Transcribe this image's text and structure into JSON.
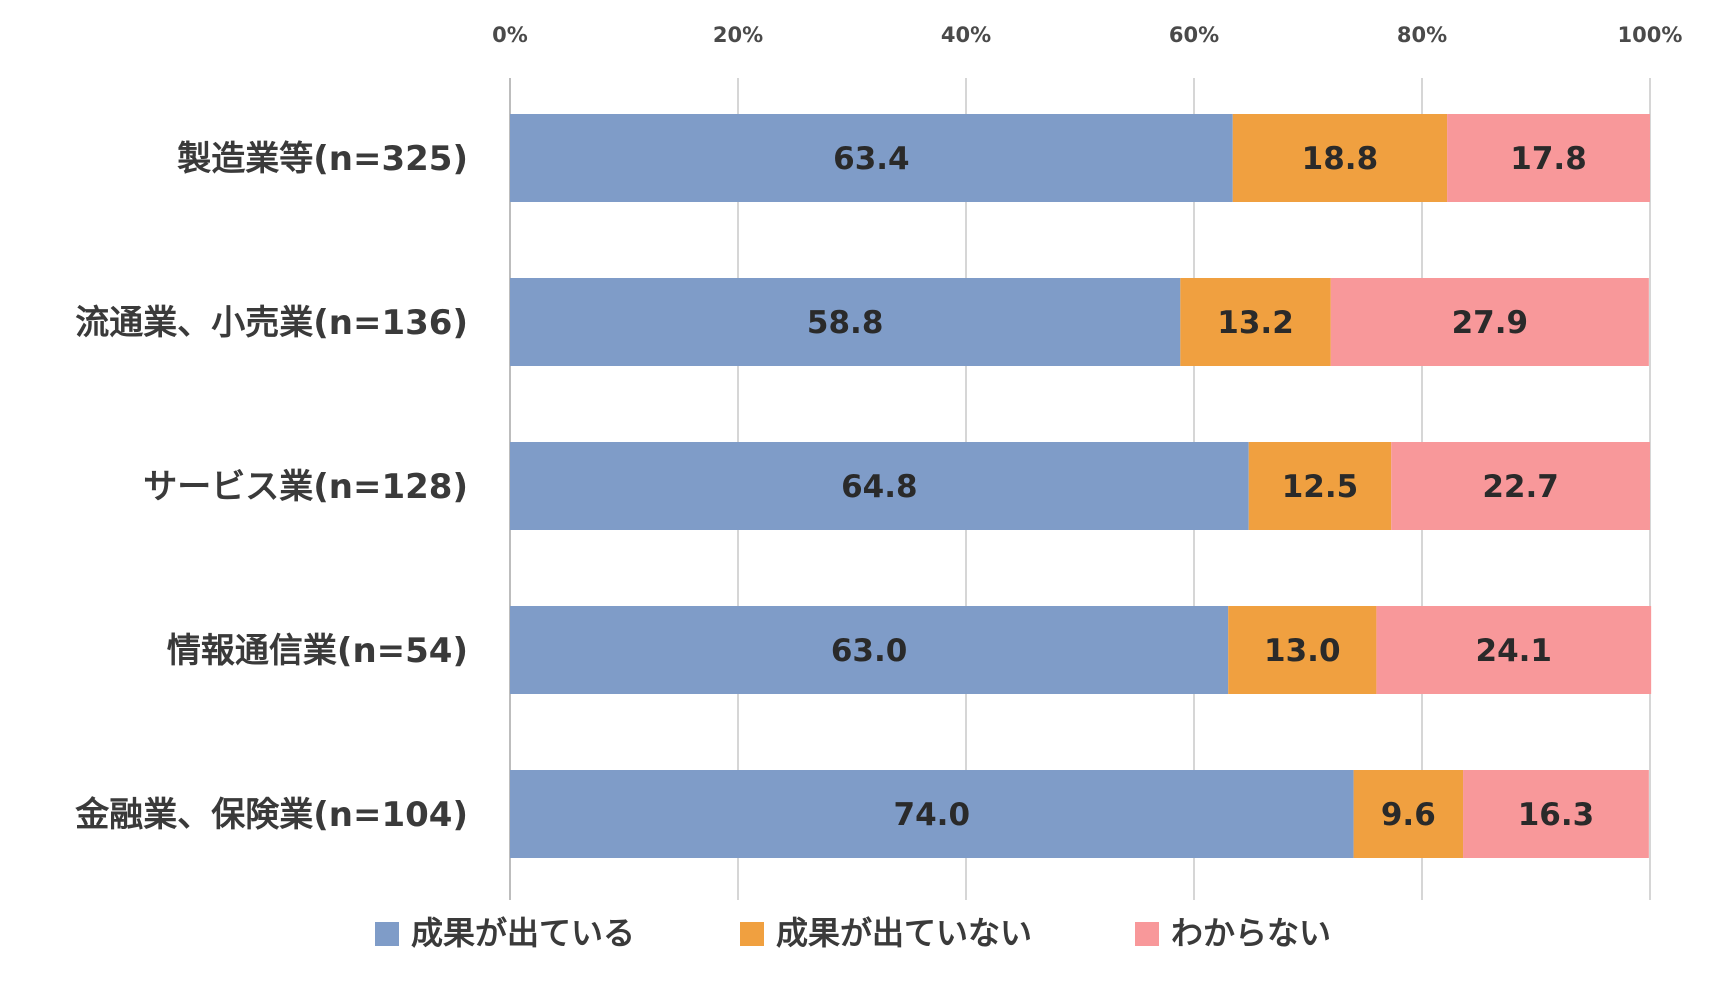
{
  "chart_data": {
    "type": "bar",
    "orientation": "horizontal",
    "stacked": true,
    "categories": [
      "製造業等(n=325)",
      "流通業、小売業(n=136)",
      "サービス業(n=128)",
      "情報通信業(n=54)",
      "金融業、保険業(n=104)"
    ],
    "series": [
      {
        "name": "成果が出ている",
        "color": "#7f9cc8",
        "values": [
          63.4,
          58.8,
          64.8,
          63.0,
          74.0
        ],
        "labels": [
          "63.4",
          "58.8",
          "64.8",
          "63.0",
          "74.0"
        ]
      },
      {
        "name": "成果が出ていない",
        "color": "#f0a040",
        "values": [
          18.8,
          13.2,
          12.5,
          13.0,
          9.6
        ],
        "labels": [
          "18.8",
          "13.2",
          "12.5",
          "13.0",
          "9.6"
        ]
      },
      {
        "name": "わからない",
        "color": "#f8989a",
        "values": [
          17.8,
          27.9,
          22.7,
          24.1,
          16.3
        ],
        "labels": [
          "17.8",
          "27.9",
          "22.7",
          "24.1",
          "16.3"
        ]
      }
    ],
    "xlim": [
      0,
      100
    ],
    "x_ticks": [
      "0%",
      "20%",
      "40%",
      "60%",
      "80%",
      "100%"
    ],
    "xaxis_position": "top",
    "grid": true,
    "legend_position": "bottom"
  }
}
